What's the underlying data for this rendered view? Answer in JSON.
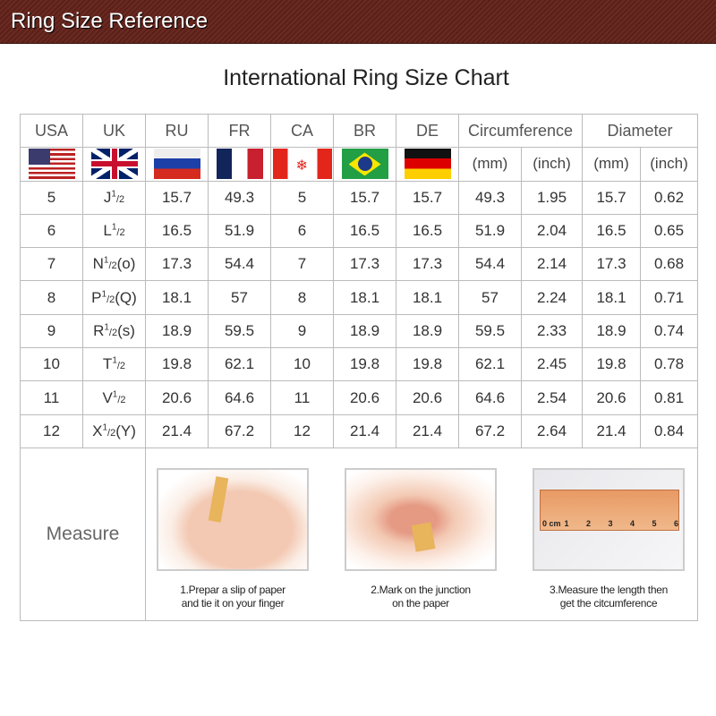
{
  "banner": {
    "title": "Ring Size Reference",
    "color": "#5e231b"
  },
  "chart_title": "International Ring Size Chart",
  "headers": [
    "USA",
    "UK",
    "RU",
    "FR",
    "CA",
    "BR",
    "DE",
    "Circumference",
    "Diameter"
  ],
  "flags": [
    "us-flag",
    "uk-flag",
    "russia-flag",
    "france-flag",
    "canada-flag",
    "brazil-flag",
    "germany-flag"
  ],
  "units": [
    "(mm)",
    "(inch)",
    "(mm)",
    "(inch)"
  ],
  "rows": [
    {
      "usa": "5",
      "uk": "J",
      "uk_frac": "1",
      "uk_den": "/2",
      "uk_alt": "",
      "ru": "15.7",
      "fr": "49.3",
      "ca": "5",
      "br": "15.7",
      "de": "15.7",
      "circ_mm": "49.3",
      "circ_in": "1.95",
      "dia_mm": "15.7",
      "dia_in": "0.62"
    },
    {
      "usa": "6",
      "uk": "L",
      "uk_frac": "1",
      "uk_den": "/2",
      "uk_alt": "",
      "ru": "16.5",
      "fr": "51.9",
      "ca": "6",
      "br": "16.5",
      "de": "16.5",
      "circ_mm": "51.9",
      "circ_in": "2.04",
      "dia_mm": "16.5",
      "dia_in": "0.65"
    },
    {
      "usa": "7",
      "uk": "N",
      "uk_frac": "1",
      "uk_den": "/2",
      "uk_alt": "(o)",
      "ru": "17.3",
      "fr": "54.4",
      "ca": "7",
      "br": "17.3",
      "de": "17.3",
      "circ_mm": "54.4",
      "circ_in": "2.14",
      "dia_mm": "17.3",
      "dia_in": "0.68"
    },
    {
      "usa": "8",
      "uk": "P",
      "uk_frac": "1",
      "uk_den": "/2",
      "uk_alt": "(Q)",
      "ru": "18.1",
      "fr": "57",
      "ca": "8",
      "br": "18.1",
      "de": "18.1",
      "circ_mm": "57",
      "circ_in": "2.24",
      "dia_mm": "18.1",
      "dia_in": "0.71"
    },
    {
      "usa": "9",
      "uk": "R",
      "uk_frac": "1",
      "uk_den": "/2",
      "uk_alt": "(s)",
      "ru": "18.9",
      "fr": "59.5",
      "ca": "9",
      "br": "18.9",
      "de": "18.9",
      "circ_mm": "59.5",
      "circ_in": "2.33",
      "dia_mm": "18.9",
      "dia_in": "0.74"
    },
    {
      "usa": "10",
      "uk": "T",
      "uk_frac": "1",
      "uk_den": "/2",
      "uk_alt": "",
      "ru": "19.8",
      "fr": "62.1",
      "ca": "10",
      "br": "19.8",
      "de": "19.8",
      "circ_mm": "62.1",
      "circ_in": "2.45",
      "dia_mm": "19.8",
      "dia_in": "0.78"
    },
    {
      "usa": "11",
      "uk": "V",
      "uk_frac": "1",
      "uk_den": "/2",
      "uk_alt": "",
      "ru": "20.6",
      "fr": "64.6",
      "ca": "11",
      "br": "20.6",
      "de": "20.6",
      "circ_mm": "64.6",
      "circ_in": "2.54",
      "dia_mm": "20.6",
      "dia_in": "0.81"
    },
    {
      "usa": "12",
      "uk": "X",
      "uk_frac": "1",
      "uk_den": "/2",
      "uk_alt": "(Y)",
      "ru": "21.4",
      "fr": "67.2",
      "ca": "12",
      "br": "21.4",
      "de": "21.4",
      "circ_mm": "67.2",
      "circ_in": "2.64",
      "dia_mm": "21.4",
      "dia_in": "0.84"
    }
  ],
  "measure": {
    "label": "Measure",
    "steps": [
      {
        "line1": "1.Prepar a slip of paper",
        "line2": "and tie it on your finger"
      },
      {
        "line1": "2.Mark on the junction",
        "line2": "on the paper"
      },
      {
        "line1": "3.Measure the length then",
        "line2": "get the citcumference"
      }
    ],
    "ruler_labels": [
      "0 cm",
      "1",
      "2",
      "3",
      "4",
      "5",
      "6"
    ]
  }
}
